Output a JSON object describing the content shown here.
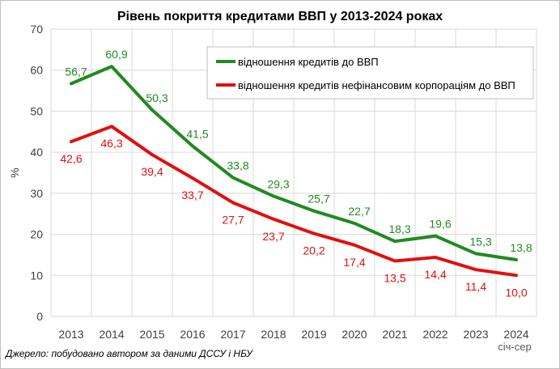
{
  "chart_data": {
    "type": "line",
    "title": "Рівень покриття кредитами ВВП у 2013-2024 роках",
    "ylabel": "%",
    "xlabel": "",
    "categories": [
      "2013",
      "2014",
      "2015",
      "2016",
      "2017",
      "2018",
      "2019",
      "2020",
      "2021",
      "2022",
      "2023",
      "2024"
    ],
    "ylim": [
      0,
      70
    ],
    "yticks": [
      0,
      10,
      20,
      30,
      40,
      50,
      60,
      70
    ],
    "grid": true,
    "legend_position": "top-right",
    "series": [
      {
        "name": "відношення кредитів до ВВП",
        "color": "#218a21",
        "values": [
          56.7,
          60.9,
          50.3,
          41.5,
          33.8,
          29.3,
          25.7,
          22.7,
          18.3,
          19.6,
          15.3,
          13.8
        ],
        "labels": [
          "56,7",
          "60,9",
          "50,3",
          "41,5",
          "33,8",
          "29,3",
          "25,7",
          "22,7",
          "18,3",
          "19,6",
          "15,3",
          "13,8"
        ]
      },
      {
        "name": "відношення кредитів нефінансовим корпораціям до ВВП",
        "color": "#e01010",
        "values": [
          42.6,
          46.3,
          39.4,
          33.7,
          27.7,
          23.7,
          20.2,
          17.4,
          13.5,
          14.4,
          11.4,
          10.0
        ],
        "labels": [
          "42,6",
          "46,3",
          "39,4",
          "33,7",
          "27,7",
          "23,7",
          "20,2",
          "17,4",
          "13,5",
          "14,4",
          "11,4",
          "10,0"
        ]
      }
    ],
    "annotation": "січ-сер",
    "source": "Джерело: побудовано автором за даними ДССУ і НБУ"
  }
}
